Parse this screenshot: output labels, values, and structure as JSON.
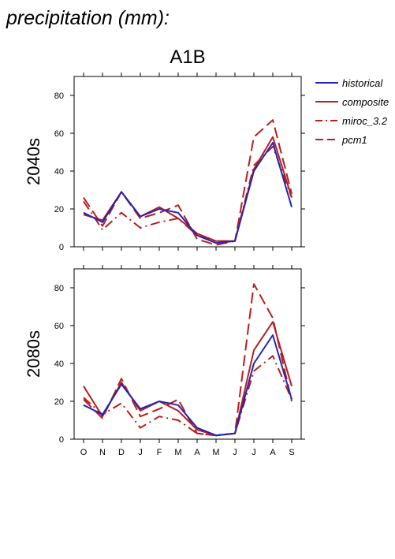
{
  "title": "precipitation (mm):",
  "scenario": "A1B",
  "colors": {
    "historical": "#2323b8",
    "model": "#b81e1e"
  },
  "legend": [
    {
      "label": "historical",
      "color": "#2323b8",
      "dash": "solid"
    },
    {
      "label": "composite",
      "color": "#b81e1e",
      "dash": "solid"
    },
    {
      "label": "miroc_3.2",
      "color": "#b81e1e",
      "dash": "dashdot"
    },
    {
      "label": "pcm1",
      "color": "#b81e1e",
      "dash": "dash"
    }
  ],
  "chart_data": [
    {
      "type": "line",
      "panel_label": "2040s",
      "categories": [
        "O",
        "N",
        "D",
        "J",
        "F",
        "M",
        "A",
        "M",
        "J",
        "J",
        "A",
        "S"
      ],
      "ylim": [
        0,
        90
      ],
      "yticks": [
        0,
        20,
        40,
        60,
        80
      ],
      "grid": false,
      "series": [
        {
          "name": "historical",
          "dash": "solid",
          "color": "#2323b8",
          "values": [
            18,
            13,
            29,
            16,
            20,
            18,
            6,
            2,
            3,
            40,
            55,
            21
          ]
        },
        {
          "name": "composite",
          "dash": "solid",
          "color": "#b81e1e",
          "values": [
            17,
            14,
            29,
            16,
            21,
            15,
            7,
            3,
            3,
            41,
            58,
            26
          ]
        },
        {
          "name": "miroc_3.2",
          "dash": "dashdot",
          "color": "#b81e1e",
          "values": [
            24,
            9,
            18,
            10,
            13,
            15,
            6,
            3,
            3,
            43,
            53,
            26
          ]
        },
        {
          "name": "pcm1",
          "dash": "dash",
          "color": "#b81e1e",
          "values": [
            26,
            11,
            29,
            15,
            18,
            22,
            4,
            1,
            3,
            58,
            67,
            28
          ]
        }
      ]
    },
    {
      "type": "line",
      "panel_label": "2080s",
      "categories": [
        "O",
        "N",
        "D",
        "J",
        "F",
        "M",
        "A",
        "M",
        "J",
        "J",
        "A",
        "S"
      ],
      "ylim": [
        0,
        90
      ],
      "yticks": [
        0,
        20,
        40,
        60,
        80
      ],
      "grid": false,
      "series": [
        {
          "name": "historical",
          "dash": "solid",
          "color": "#2323b8",
          "values": [
            18,
            13,
            29,
            16,
            20,
            18,
            6,
            2,
            3,
            40,
            55,
            21
          ]
        },
        {
          "name": "composite",
          "dash": "solid",
          "color": "#b81e1e",
          "values": [
            28,
            12,
            30,
            15,
            20,
            15,
            5,
            2,
            3,
            47,
            62,
            28
          ]
        },
        {
          "name": "miroc_3.2",
          "dash": "dashdot",
          "color": "#b81e1e",
          "values": [
            22,
            13,
            19,
            6,
            12,
            10,
            3,
            2,
            3,
            36,
            44,
            21
          ]
        },
        {
          "name": "pcm1",
          "dash": "dash",
          "color": "#b81e1e",
          "values": [
            21,
            11,
            32,
            12,
            16,
            21,
            3,
            2,
            3,
            82,
            64,
            20
          ]
        }
      ]
    }
  ]
}
